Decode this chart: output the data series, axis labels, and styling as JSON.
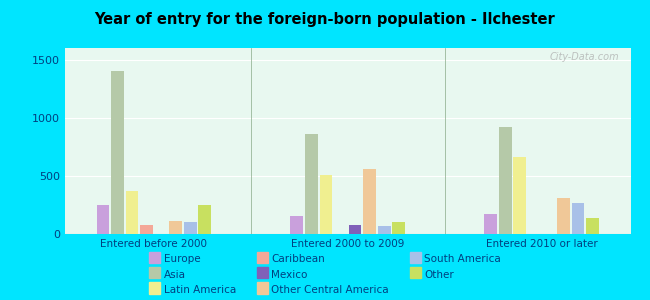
{
  "title": "Year of entry for the foreign-born population - Ilchester",
  "groups": [
    "Entered before 2000",
    "Entered 2000 to 2009",
    "Entered 2010 or later"
  ],
  "categories": [
    "Europe",
    "Asia",
    "Latin America",
    "Caribbean",
    "Mexico",
    "Other Central America",
    "South America",
    "Other"
  ],
  "values": {
    "Entered before 2000": [
      250,
      1400,
      370,
      80,
      0,
      110,
      100,
      250
    ],
    "Entered 2000 to 2009": [
      155,
      860,
      510,
      0,
      75,
      560,
      65,
      105
    ],
    "Entered 2010 or later": [
      175,
      920,
      660,
      0,
      0,
      310,
      270,
      135
    ]
  },
  "colors": {
    "Europe": "#c9a0dc",
    "Asia": "#b5c9a8",
    "Latin America": "#f0ef90",
    "Caribbean": "#f4a898",
    "Mexico": "#8060b8",
    "Other Central America": "#f0c898",
    "South America": "#a8c0e8",
    "Other": "#c8e060"
  },
  "background_outer": "#00e5ff",
  "background_inner_top": "#d0ede0",
  "background_inner_bottom": "#e8f8f0",
  "ylim": [
    0,
    1600
  ],
  "yticks": [
    0,
    500,
    1000,
    1500
  ],
  "watermark": "City-Data.com",
  "legend_order": [
    "Europe",
    "Asia",
    "Latin America",
    "Caribbean",
    "Mexico",
    "Other Central America",
    "South America",
    "Other"
  ]
}
